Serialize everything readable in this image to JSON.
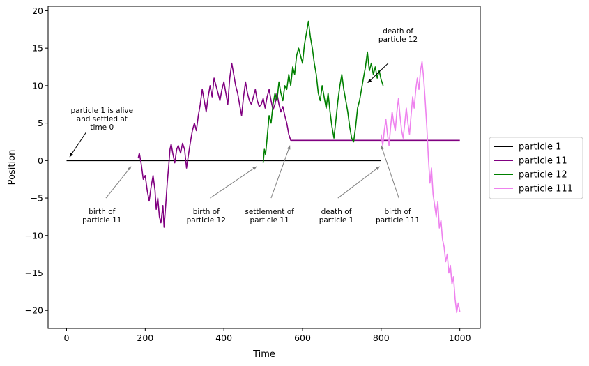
{
  "chart_data": {
    "type": "line",
    "title": "",
    "xlabel": "Time",
    "ylabel": "Position",
    "xlim": [
      -47,
      1052
    ],
    "ylim": [
      -22.4,
      20.6
    ],
    "xticks": [
      0,
      200,
      400,
      600,
      800,
      1000
    ],
    "yticks": [
      -20,
      -15,
      -10,
      -5,
      0,
      5,
      10,
      15,
      20
    ],
    "tick_labels": {
      "x": [
        "0",
        "200",
        "400",
        "600",
        "800",
        "1000"
      ],
      "y": [
        "−20",
        "−15",
        "−10",
        "−5",
        "0",
        "5",
        "10",
        "15",
        "20"
      ]
    },
    "grid": false,
    "legend_position": "right-center",
    "series": [
      {
        "name": "particle 1",
        "color": "#000000",
        "points": [
          [
            0,
            0
          ],
          [
            800,
            0
          ]
        ]
      },
      {
        "name": "particle 11",
        "color": "#800080",
        "points": [
          [
            182,
            0.3
          ],
          [
            185,
            1.0
          ],
          [
            190,
            -0.5
          ],
          [
            195,
            -2.5
          ],
          [
            200,
            -2.0
          ],
          [
            205,
            -4.0
          ],
          [
            210,
            -5.4
          ],
          [
            215,
            -3.5
          ],
          [
            220,
            -2.0
          ],
          [
            225,
            -4.0
          ],
          [
            228,
            -6.5
          ],
          [
            232,
            -5.0
          ],
          [
            236,
            -7.5
          ],
          [
            240,
            -8.3
          ],
          [
            245,
            -6.0
          ],
          [
            248,
            -8.9
          ],
          [
            252,
            -6.0
          ],
          [
            256,
            -3.0
          ],
          [
            260,
            -0.5
          ],
          [
            263,
            1.5
          ],
          [
            266,
            2.2
          ],
          [
            270,
            1.0
          ],
          [
            275,
            -0.3
          ],
          [
            280,
            1.5
          ],
          [
            284,
            2.0
          ],
          [
            290,
            1.0
          ],
          [
            295,
            2.3
          ],
          [
            300,
            1.5
          ],
          [
            305,
            -1.0
          ],
          [
            310,
            0.8
          ],
          [
            315,
            2.5
          ],
          [
            320,
            4.0
          ],
          [
            325,
            5.0
          ],
          [
            330,
            4.0
          ],
          [
            335,
            6.0
          ],
          [
            340,
            7.5
          ],
          [
            345,
            9.5
          ],
          [
            350,
            8.0
          ],
          [
            355,
            6.5
          ],
          [
            360,
            8.5
          ],
          [
            365,
            10.0
          ],
          [
            370,
            8.5
          ],
          [
            375,
            11.0
          ],
          [
            380,
            10.0
          ],
          [
            385,
            9.0
          ],
          [
            390,
            8.0
          ],
          [
            395,
            9.5
          ],
          [
            400,
            10.5
          ],
          [
            405,
            9.0
          ],
          [
            410,
            7.5
          ],
          [
            415,
            11.0
          ],
          [
            420,
            13.0
          ],
          [
            425,
            11.5
          ],
          [
            430,
            10.0
          ],
          [
            435,
            9.0
          ],
          [
            440,
            7.5
          ],
          [
            445,
            6.0
          ],
          [
            450,
            8.5
          ],
          [
            455,
            10.5
          ],
          [
            460,
            9.0
          ],
          [
            465,
            8.0
          ],
          [
            470,
            7.5
          ],
          [
            475,
            8.5
          ],
          [
            480,
            9.5
          ],
          [
            485,
            8.0
          ],
          [
            490,
            7.2
          ],
          [
            495,
            7.5
          ],
          [
            500,
            8.3
          ],
          [
            505,
            7.0
          ],
          [
            510,
            8.5
          ],
          [
            515,
            9.5
          ],
          [
            520,
            8.0
          ],
          [
            525,
            6.8
          ],
          [
            530,
            7.5
          ],
          [
            535,
            9.0
          ],
          [
            540,
            7.5
          ],
          [
            545,
            6.5
          ],
          [
            550,
            7.2
          ],
          [
            555,
            6.0
          ],
          [
            560,
            5.0
          ],
          [
            565,
            3.5
          ],
          [
            570,
            2.7
          ],
          [
            1000,
            2.7
          ]
        ]
      },
      {
        "name": "particle 12",
        "color": "#008000",
        "points": [
          [
            500,
            -0.3
          ],
          [
            503,
            1.5
          ],
          [
            506,
            0.8
          ],
          [
            510,
            3.0
          ],
          [
            515,
            6.0
          ],
          [
            520,
            5.0
          ],
          [
            525,
            7.5
          ],
          [
            530,
            9.0
          ],
          [
            535,
            8.0
          ],
          [
            540,
            10.5
          ],
          [
            545,
            9.0
          ],
          [
            550,
            8.0
          ],
          [
            555,
            10.0
          ],
          [
            560,
            9.5
          ],
          [
            565,
            11.5
          ],
          [
            570,
            10.0
          ],
          [
            575,
            12.5
          ],
          [
            580,
            11.5
          ],
          [
            585,
            14.0
          ],
          [
            590,
            15.0
          ],
          [
            595,
            14.0
          ],
          [
            600,
            13.0
          ],
          [
            605,
            15.5
          ],
          [
            610,
            17.0
          ],
          [
            615,
            18.6
          ],
          [
            620,
            16.5
          ],
          [
            625,
            15.0
          ],
          [
            630,
            13.0
          ],
          [
            635,
            11.5
          ],
          [
            640,
            9.0
          ],
          [
            645,
            8.0
          ],
          [
            650,
            10.0
          ],
          [
            655,
            8.5
          ],
          [
            660,
            7.0
          ],
          [
            665,
            9.0
          ],
          [
            670,
            6.5
          ],
          [
            675,
            4.5
          ],
          [
            680,
            3.0
          ],
          [
            685,
            5.5
          ],
          [
            690,
            8.0
          ],
          [
            695,
            10.0
          ],
          [
            700,
            11.5
          ],
          [
            705,
            9.5
          ],
          [
            710,
            8.0
          ],
          [
            715,
            6.5
          ],
          [
            720,
            4.5
          ],
          [
            725,
            3.0
          ],
          [
            730,
            2.5
          ],
          [
            735,
            4.5
          ],
          [
            740,
            7.0
          ],
          [
            745,
            8.0
          ],
          [
            750,
            9.5
          ],
          [
            755,
            11.0
          ],
          [
            760,
            12.5
          ],
          [
            765,
            14.5
          ],
          [
            770,
            12.0
          ],
          [
            775,
            13.0
          ],
          [
            780,
            11.5
          ],
          [
            785,
            12.5
          ],
          [
            790,
            11.0
          ],
          [
            795,
            12.0
          ],
          [
            800,
            10.8
          ],
          [
            805,
            10.0
          ]
        ]
      },
      {
        "name": "particle 111",
        "color": "#ee82ee",
        "points": [
          [
            800,
            3.5
          ],
          [
            804,
            2.0
          ],
          [
            808,
            4.0
          ],
          [
            812,
            5.5
          ],
          [
            816,
            3.5
          ],
          [
            820,
            2.0
          ],
          [
            824,
            4.5
          ],
          [
            828,
            6.5
          ],
          [
            832,
            5.0
          ],
          [
            836,
            4.0
          ],
          [
            840,
            6.5
          ],
          [
            844,
            8.3
          ],
          [
            848,
            6.0
          ],
          [
            852,
            4.0
          ],
          [
            856,
            3.0
          ],
          [
            860,
            5.0
          ],
          [
            864,
            7.0
          ],
          [
            868,
            5.0
          ],
          [
            872,
            3.5
          ],
          [
            876,
            6.0
          ],
          [
            880,
            8.5
          ],
          [
            884,
            7.0
          ],
          [
            888,
            9.5
          ],
          [
            892,
            11.0
          ],
          [
            896,
            9.5
          ],
          [
            900,
            12.0
          ],
          [
            904,
            13.2
          ],
          [
            908,
            11.0
          ],
          [
            912,
            8.0
          ],
          [
            916,
            4.5
          ],
          [
            920,
            0.5
          ],
          [
            924,
            -3.0
          ],
          [
            928,
            -1.0
          ],
          [
            932,
            -4.5
          ],
          [
            936,
            -6.0
          ],
          [
            940,
            -7.5
          ],
          [
            944,
            -5.5
          ],
          [
            948,
            -9.0
          ],
          [
            952,
            -8.0
          ],
          [
            956,
            -10.5
          ],
          [
            960,
            -11.5
          ],
          [
            964,
            -13.5
          ],
          [
            968,
            -12.5
          ],
          [
            972,
            -15.0
          ],
          [
            976,
            -14.0
          ],
          [
            980,
            -16.5
          ],
          [
            984,
            -15.5
          ],
          [
            988,
            -18.5
          ],
          [
            992,
            -20.3
          ],
          [
            996,
            -19.0
          ],
          [
            1000,
            -20.2
          ]
        ]
      }
    ],
    "annotations": [
      {
        "lines": [
          "particle 1 is alive",
          "and settled at",
          "time 0"
        ],
        "text_x": 90,
        "text_y": 5.6,
        "line_from": [
          50,
          3.8
        ],
        "arrow_to": [
          8,
          0.5
        ],
        "arrow_color": "#000000"
      },
      {
        "lines": [
          "birth of",
          "particle 11"
        ],
        "text_x": 90,
        "text_y": -7.3,
        "line_from": [
          100,
          -5.0
        ],
        "arrow_to": [
          164,
          -0.8
        ],
        "arrow_color": "#808080"
      },
      {
        "lines": [
          "birth of",
          "particle 12"
        ],
        "text_x": 355,
        "text_y": -7.3,
        "line_from": [
          365,
          -5.0
        ],
        "arrow_to": [
          483,
          -0.8
        ],
        "arrow_color": "#808080"
      },
      {
        "lines": [
          "settlement of",
          "particle 11"
        ],
        "text_x": 516,
        "text_y": -7.3,
        "line_from": [
          520,
          -5.0
        ],
        "arrow_to": [
          568,
          2.0
        ],
        "arrow_color": "#808080"
      },
      {
        "lines": [
          "death of",
          "particle 1"
        ],
        "text_x": 686,
        "text_y": -7.3,
        "line_from": [
          690,
          -5.0
        ],
        "arrow_to": [
          796,
          -0.8
        ],
        "arrow_color": "#808080"
      },
      {
        "lines": [
          "birth of",
          "particle 111"
        ],
        "text_x": 842,
        "text_y": -7.3,
        "line_from": [
          845,
          -5.0
        ],
        "arrow_to": [
          800,
          2.0
        ],
        "arrow_color": "#808080"
      },
      {
        "lines": [
          "death of",
          "particle 12"
        ],
        "text_x": 843,
        "text_y": 16.8,
        "line_from": [
          818,
          13.0
        ],
        "arrow_to": [
          766,
          10.4
        ],
        "arrow_color": "#000000"
      }
    ]
  }
}
